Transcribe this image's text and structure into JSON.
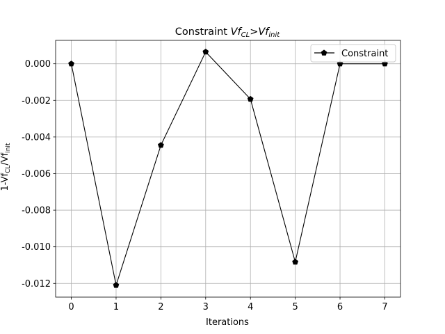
{
  "chart_data": {
    "type": "line",
    "title_prefix": "Constraint ",
    "title_symbol1_base": "Vf",
    "title_symbol1_sub": "CL",
    "title_operator": ">",
    "title_symbol2_base": "Vf",
    "title_symbol2_sub": "init",
    "xlabel": "Iterations",
    "ylabel_prefix": "1-Vf",
    "ylabel_sub1": "CL",
    "ylabel_mid": "/Vf",
    "ylabel_sub2": "init",
    "xlim": [
      -0.35,
      7.35
    ],
    "ylim": [
      -0.01275,
      0.00128
    ],
    "xticks": [
      0,
      1,
      2,
      3,
      4,
      5,
      6,
      7
    ],
    "yticks": [
      0.0,
      -0.002,
      -0.004,
      -0.006,
      -0.008,
      -0.01,
      -0.012
    ],
    "ytick_labels": [
      "0.000",
      "-0.002",
      "-0.004",
      "-0.006",
      "-0.008",
      "-0.010",
      "-0.012"
    ],
    "grid": true,
    "legend_position": "top-right",
    "series": [
      {
        "name": "Constraint",
        "color": "#000000",
        "marker": "pentagon",
        "x": [
          0,
          1,
          2,
          3,
          4,
          5,
          6,
          7
        ],
        "values": [
          0.0,
          -0.0121,
          -0.00445,
          0.00065,
          -0.00193,
          -0.01083,
          0.0,
          0.0
        ]
      }
    ]
  }
}
